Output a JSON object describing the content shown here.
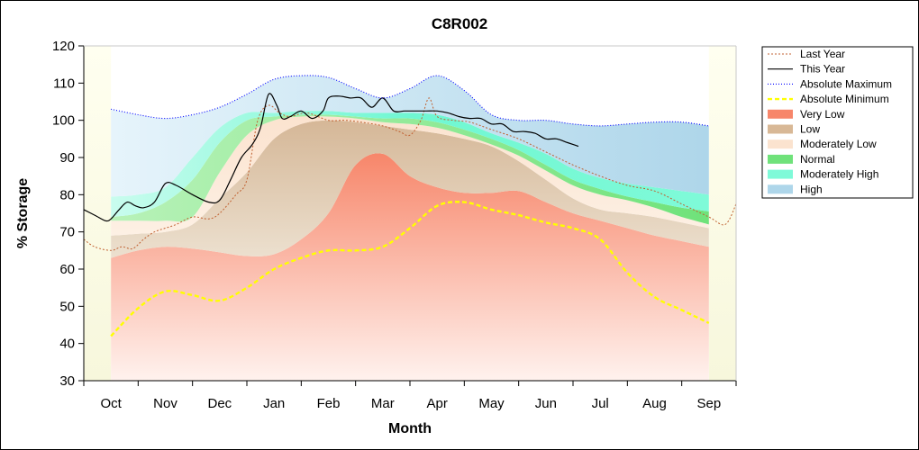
{
  "chart_data": {
    "type": "area",
    "title": "C8R002",
    "xlabel": "Month",
    "ylabel": "% Storage",
    "ylim": [
      30,
      120
    ],
    "yticks": [
      30,
      40,
      50,
      60,
      70,
      80,
      90,
      100,
      110,
      120
    ],
    "xlim": [
      -0.5,
      11.5
    ],
    "categories": [
      "Oct",
      "Nov",
      "Dec",
      "Jan",
      "Feb",
      "Mar",
      "Apr",
      "May",
      "Jun",
      "Jul",
      "Aug",
      "Sep"
    ],
    "grid": false,
    "legend_position": "right",
    "colors": {
      "very_low": "#f7a08a",
      "low": "#dcc2a4",
      "moderately_low": "#faddc6",
      "normal": "#6fe27a",
      "moderately_high": "#7ffad8",
      "high": "#b2d9ec",
      "last_year": "#c06030",
      "this_year": "#000000",
      "absolute_maximum": "#0000ff",
      "absolute_minimum": "#ffff00"
    },
    "legend": [
      {
        "key": "last_year",
        "label": "Last Year",
        "style": "line-dotted"
      },
      {
        "key": "this_year",
        "label": "This Year",
        "style": "line-solid"
      },
      {
        "key": "absolute_maximum",
        "label": "Absolute Maximum",
        "style": "line-dotted"
      },
      {
        "key": "absolute_minimum",
        "label": "Absolute Minimum",
        "style": "line-dashed"
      },
      {
        "key": "very_low",
        "label": "Very Low",
        "style": "fill"
      },
      {
        "key": "low",
        "label": "Low",
        "style": "fill"
      },
      {
        "key": "moderately_low",
        "label": "Moderately Low",
        "style": "fill"
      },
      {
        "key": "normal",
        "label": "Normal",
        "style": "fill"
      },
      {
        "key": "moderately_high",
        "label": "Moderately High",
        "style": "fill"
      },
      {
        "key": "high",
        "label": "High",
        "style": "fill"
      }
    ],
    "band_x": [
      0,
      0.5,
      1,
      1.5,
      2,
      2.5,
      3,
      3.5,
      4,
      4.5,
      5,
      5.5,
      6,
      6.5,
      7,
      7.5,
      8,
      8.5,
      9,
      9.5,
      10,
      10.5,
      11
    ],
    "bands": {
      "very_low_top": [
        63,
        65,
        66,
        65.5,
        64.5,
        63.5,
        64,
        68,
        75,
        88,
        91,
        85,
        82,
        80.5,
        80.5,
        81,
        78,
        75,
        73,
        71,
        69,
        67.5,
        66
      ],
      "low_top": [
        69,
        69.5,
        70,
        72,
        79,
        86,
        95,
        99,
        100,
        99.5,
        98.5,
        97.5,
        96.5,
        95,
        93,
        89,
        84,
        79,
        76,
        75,
        74,
        72.5,
        71
      ],
      "moderately_low_top": [
        73,
        73,
        73,
        74,
        86,
        96,
        100,
        101,
        101,
        100.5,
        99.5,
        99,
        98,
        96,
        93.5,
        90.5,
        86.5,
        82.5,
        80,
        78.5,
        76.5,
        74,
        72
      ],
      "normal_top": [
        74,
        75,
        78,
        84,
        94,
        100,
        101,
        101.5,
        101.5,
        101,
        100.5,
        100.5,
        99.5,
        97.5,
        95,
        92,
        88,
        84,
        81.5,
        79.5,
        78,
        76.5,
        75.5
      ],
      "moderately_high_top": [
        79.5,
        80,
        82,
        90,
        98,
        102,
        102,
        102.5,
        102.5,
        102,
        102,
        102,
        101.5,
        99.5,
        96.5,
        94,
        91,
        87,
        84.5,
        83,
        82,
        81,
        80
      ],
      "high_top": [
        103,
        101.5,
        100.5,
        101.5,
        103.5,
        107,
        111,
        112,
        111.5,
        108.5,
        106,
        108.5,
        112,
        108,
        101.5,
        100,
        100,
        99,
        98.5,
        99,
        99.5,
        99.5,
        98.5
      ]
    },
    "series": [
      {
        "key": "absolute_minimum",
        "name": "Absolute Minimum",
        "x": [
          0,
          0.5,
          1,
          1.5,
          2,
          2.5,
          3,
          3.5,
          4,
          4.5,
          5,
          5.5,
          6,
          6.5,
          7,
          7.5,
          8,
          8.5,
          9,
          9.5,
          10,
          10.5,
          11
        ],
        "y": [
          42,
          49.5,
          54,
          53,
          51.5,
          55,
          60,
          63,
          65,
          65,
          66,
          71,
          77,
          78,
          76,
          74.5,
          72.5,
          71,
          68,
          59,
          52.5,
          49,
          45.5
        ]
      },
      {
        "key": "last_year",
        "name": "Last Year",
        "x": [
          -0.5,
          -0.3,
          0,
          0.2,
          0.4,
          0.6,
          0.8,
          1,
          1.2,
          1.5,
          1.8,
          2,
          2.3,
          2.5,
          2.7,
          2.9,
          3.1,
          3.3,
          3.6,
          4,
          4.3,
          4.6,
          5,
          5.3,
          5.5,
          5.7,
          5.85,
          6,
          6.3,
          6.6,
          7,
          7.5,
          8,
          8.5,
          9,
          9.5,
          10,
          10.5,
          11,
          11.3,
          11.5
        ],
        "y": [
          68,
          66,
          65,
          66,
          65.5,
          68,
          70,
          71,
          72,
          74,
          73.5,
          75,
          80,
          84,
          100,
          104,
          102,
          101,
          102,
          100,
          100,
          99.5,
          98.5,
          97,
          96,
          100,
          106,
          101,
          100,
          99.5,
          97.5,
          95,
          91.5,
          88,
          85,
          82.5,
          81,
          77.5,
          74,
          72,
          77.5
        ]
      },
      {
        "key": "this_year",
        "name": "This Year",
        "x": [
          -0.5,
          -0.3,
          -0.1,
          0,
          0.15,
          0.3,
          0.45,
          0.6,
          0.8,
          1,
          1.2,
          1.5,
          1.8,
          2,
          2.2,
          2.4,
          2.6,
          2.75,
          2.9,
          3.05,
          3.15,
          3.3,
          3.5,
          3.7,
          3.9,
          4,
          4.2,
          4.4,
          4.6,
          4.8,
          5,
          5.2,
          5.4,
          5.6,
          5.8,
          6,
          6.2,
          6.4,
          6.6,
          6.8,
          7,
          7.2,
          7.4,
          7.6,
          7.8,
          8,
          8.2,
          8.4,
          8.6
        ],
        "y": [
          76,
          74.5,
          73,
          73.5,
          76,
          78,
          77,
          76.5,
          78,
          83,
          82.5,
          80,
          78,
          78.5,
          84,
          90,
          93.5,
          98,
          107,
          104,
          100.5,
          101,
          102.5,
          100.5,
          102.5,
          106,
          106.5,
          106,
          106,
          103.5,
          106,
          102.5,
          102.5,
          102.5,
          102.5,
          102.5,
          102,
          101,
          100.5,
          100.5,
          99,
          99,
          97,
          97,
          96.5,
          95,
          95,
          94,
          93
        ]
      },
      {
        "key": "absolute_maximum",
        "name": "Absolute Maximum",
        "x": [
          0,
          0.5,
          1,
          1.5,
          2,
          2.5,
          3,
          3.5,
          4,
          4.5,
          5,
          5.5,
          6,
          6.5,
          7,
          7.5,
          8,
          8.5,
          9,
          9.5,
          10,
          10.5,
          11
        ],
        "y": [
          103,
          101.5,
          100.5,
          101.5,
          103.5,
          107,
          111,
          112,
          111.5,
          108.5,
          106,
          108.5,
          112,
          108,
          101.5,
          100,
          100,
          99,
          98.5,
          99,
          99.5,
          99.5,
          98.5
        ]
      }
    ]
  }
}
